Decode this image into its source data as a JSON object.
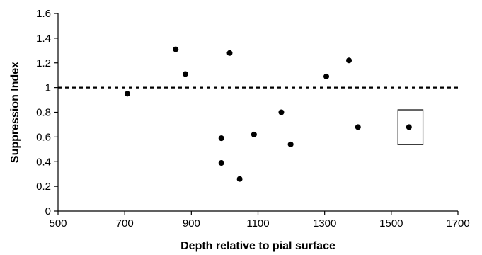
{
  "chart_data": {
    "type": "scatter",
    "xlabel": "Depth relative to pial surface",
    "ylabel": "Suppression Index",
    "xlim": [
      500,
      1700
    ],
    "ylim": [
      0,
      1.6
    ],
    "xticks": [
      500,
      700,
      900,
      1100,
      1300,
      1500,
      1700
    ],
    "xtick_labels": [
      "500",
      "700",
      "900",
      "1100",
      "1300",
      "1500",
      "1700"
    ],
    "yticks": [
      0,
      0.2,
      0.4,
      0.6,
      0.8,
      1,
      1.2,
      1.4,
      1.6
    ],
    "ytick_labels": [
      "0",
      "0.2",
      "0.4",
      "0.6",
      "0.8",
      "1",
      "1.2",
      "1.4",
      "1.6"
    ],
    "grid": false,
    "reference_line": {
      "y": 1,
      "style": "dashed"
    },
    "highlight_box": {
      "x": [
        1520,
        1595
      ],
      "y": [
        0.54,
        0.82
      ]
    },
    "series": [
      {
        "marker_color": "#000000",
        "points": [
          {
            "x": 708,
            "y": 0.95
          },
          {
            "x": 853,
            "y": 1.31
          },
          {
            "x": 882,
            "y": 1.11
          },
          {
            "x": 990,
            "y": 0.59
          },
          {
            "x": 990,
            "y": 0.39
          },
          {
            "x": 1015,
            "y": 1.28
          },
          {
            "x": 1045,
            "y": 0.26
          },
          {
            "x": 1088,
            "y": 0.62
          },
          {
            "x": 1170,
            "y": 0.8
          },
          {
            "x": 1198,
            "y": 0.54
          },
          {
            "x": 1305,
            "y": 1.09
          },
          {
            "x": 1373,
            "y": 1.22
          },
          {
            "x": 1400,
            "y": 0.68
          },
          {
            "x": 1553,
            "y": 0.68
          }
        ]
      }
    ]
  }
}
